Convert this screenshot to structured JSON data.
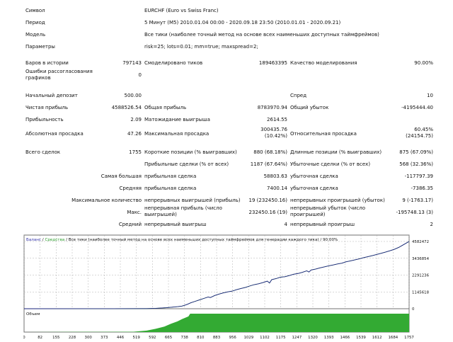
{
  "header": {
    "symbol_label": "Символ",
    "symbol_value": "EURCHF (Euro vs Swiss Franc)",
    "period_label": "Период",
    "period_value": "5 Минут (M5) 2010.01.04 00:00 - 2020.09.18 23:50 (2010.01.01 - 2020.09.21)",
    "model_label": "Модель",
    "model_value": "Все тики (наиболее точный метод на основе всех наименьших доступных таймфреймов)",
    "params_label": "Параметры",
    "params_value": "risk=25; lots=0.01; mm=true; maxspread=2;"
  },
  "stats": {
    "bars_label": "Баров в истории",
    "bars_value": "797143",
    "ticks_label": "Смоделировано тиков",
    "ticks_value": "189463395",
    "quality_label": "Качество моделирования",
    "quality_value": "90.00%",
    "errors_label": "Ошибки рассогласования графиков",
    "errors_value": "0",
    "deposit_label": "Начальный депозит",
    "deposit_value": "500.00",
    "spread_label": "Спред",
    "spread_value": "10",
    "net_profit_label": "Чистая прибыль",
    "net_profit_value": "4588526.54",
    "gross_profit_label": "Общая прибыль",
    "gross_profit_value": "8783970.94",
    "gross_loss_label": "Общий убыток",
    "gross_loss_value": "-4195444.40",
    "profit_factor_label": "Прибыльность",
    "profit_factor_value": "2.09",
    "expected_payoff_label": "Матожидание выигрыша",
    "expected_payoff_value": "2614.55",
    "abs_dd_label": "Абсолютная просадка",
    "abs_dd_value": "47.26",
    "max_dd_label": "Максимальная просадка",
    "max_dd_value": "300435.76 (10.42%)",
    "rel_dd_label": "Относительная просадка",
    "rel_dd_value": "60.45% (24154.75)",
    "total_trades_label": "Всего сделок",
    "total_trades_value": "1755",
    "short_label": "Короткие позиции (% выигравших)",
    "short_value": "880 (68.18%)",
    "long_label": "Длинные позиции (% выигравших)",
    "long_value": "875 (67.09%)",
    "profit_trades_label": "Прибыльные сделки (% от всех)",
    "profit_trades_value": "1187 (67.64%)",
    "loss_trades_label": "Убыточные сделки (% от всех)",
    "loss_trades_value": "568 (32.36%)",
    "largest_label": "Самая большая",
    "largest_profit_label": "прибыльная сделка",
    "largest_profit_value": "58803.63",
    "largest_loss_label": "убыточная сделка",
    "largest_loss_value": "-117797.39",
    "average_label": "Средняя",
    "average_profit_label": "прибыльная сделка",
    "average_profit_value": "7400.14",
    "average_loss_label": "убыточная сделка",
    "average_loss_value": "-7386.35",
    "max_consec_label": "Максимальное количество",
    "max_consec_wins_label": "непрерывных выигрышей (прибыль)",
    "max_consec_wins_value": "19 (232450.16)",
    "max_consec_losses_label": "непрерывных проигрышей (убыток)",
    "max_consec_losses_value": "9 (-1763.17)",
    "maximal_label": "Макс.",
    "maximal_profit_label": "непрерывная прибыль (число выигрышей)",
    "maximal_profit_value": "232450.16 (19)",
    "maximal_loss_label": "непрерывный убыток (число проигрышей)",
    "maximal_loss_value": "-195748.13 (3)",
    "avg_consec_label": "Средний",
    "avg_consec_wins_label": "непрерывный выигрыш",
    "avg_consec_wins_value": "4",
    "avg_consec_losses_label": "непрерывный проигрыш",
    "avg_consec_losses_value": "2"
  },
  "colors": {
    "balance": "#1a237e",
    "equity": "#2fa02f",
    "volume": "#33aa33",
    "legend_blue": "#3333aa",
    "legend_green": "#2e9e2e",
    "grid": "#9e9e9e",
    "frame": "#707070"
  },
  "chart_data": {
    "type": "line",
    "legend": {
      "balance": "Баланс",
      "sep1": "/",
      "equity": "Средства",
      "rest": "/ Все тики (наиболее точный метод на основе всех наименьших доступных таймфреймов для генерации каждого тика) / 90.00%"
    },
    "volume_label": "Объем",
    "y_ticks": [
      "4582472",
      "3436854",
      "2291236",
      "1145618",
      "0"
    ],
    "y_tick_values": [
      4582472,
      3436854,
      2291236,
      1145618,
      0
    ],
    "x_ticks": [
      "0",
      "82",
      "155",
      "228",
      "300",
      "373",
      "446",
      "519",
      "592",
      "665",
      "738",
      "810",
      "883",
      "956",
      "1029",
      "1102",
      "1175",
      "1247",
      "1320",
      "1393",
      "1466",
      "1539",
      "1612",
      "1684",
      "1757"
    ],
    "ylim": [
      0,
      4582472
    ],
    "xlim": [
      0,
      1757
    ],
    "balance_x": [
      0,
      400,
      560,
      600,
      650,
      700,
      720,
      730,
      745,
      760,
      780,
      800,
      820,
      840,
      850,
      870,
      890,
      910,
      930,
      950,
      970,
      990,
      1010,
      1030,
      1050,
      1070,
      1090,
      1110,
      1120,
      1130,
      1150,
      1170,
      1190,
      1210,
      1230,
      1250,
      1270,
      1290,
      1300,
      1310,
      1330,
      1350,
      1370,
      1390,
      1410,
      1430,
      1450,
      1470,
      1490,
      1510,
      1530,
      1550,
      1570,
      1590,
      1610,
      1630,
      1650,
      1670,
      1690,
      1710,
      1730,
      1757
    ],
    "balance_y": [
      500,
      2000,
      10000,
      25000,
      70000,
      140000,
      180000,
      220000,
      300000,
      400000,
      500000,
      600000,
      700000,
      800000,
      760000,
      900000,
      1000000,
      1080000,
      1150000,
      1200000,
      1300000,
      1380000,
      1450000,
      1550000,
      1640000,
      1700000,
      1780000,
      1880000,
      1750000,
      1980000,
      2050000,
      2150000,
      2180000,
      2260000,
      2350000,
      2400000,
      2480000,
      2580000,
      2500000,
      2640000,
      2700000,
      2780000,
      2850000,
      2920000,
      2980000,
      3050000,
      3100000,
      3200000,
      3260000,
      3330000,
      3400000,
      3480000,
      3550000,
      3620000,
      3700000,
      3780000,
      3860000,
      3950000,
      4050000,
      4180000,
      4350000,
      4582472
    ],
    "volume_x": [
      0,
      500,
      560,
      600,
      640,
      670,
      700,
      720,
      750,
      758,
      1757
    ],
    "volume_y": [
      0,
      0.02,
      0.08,
      0.18,
      0.3,
      0.45,
      0.58,
      0.7,
      0.85,
      1.0,
      1.0
    ]
  }
}
